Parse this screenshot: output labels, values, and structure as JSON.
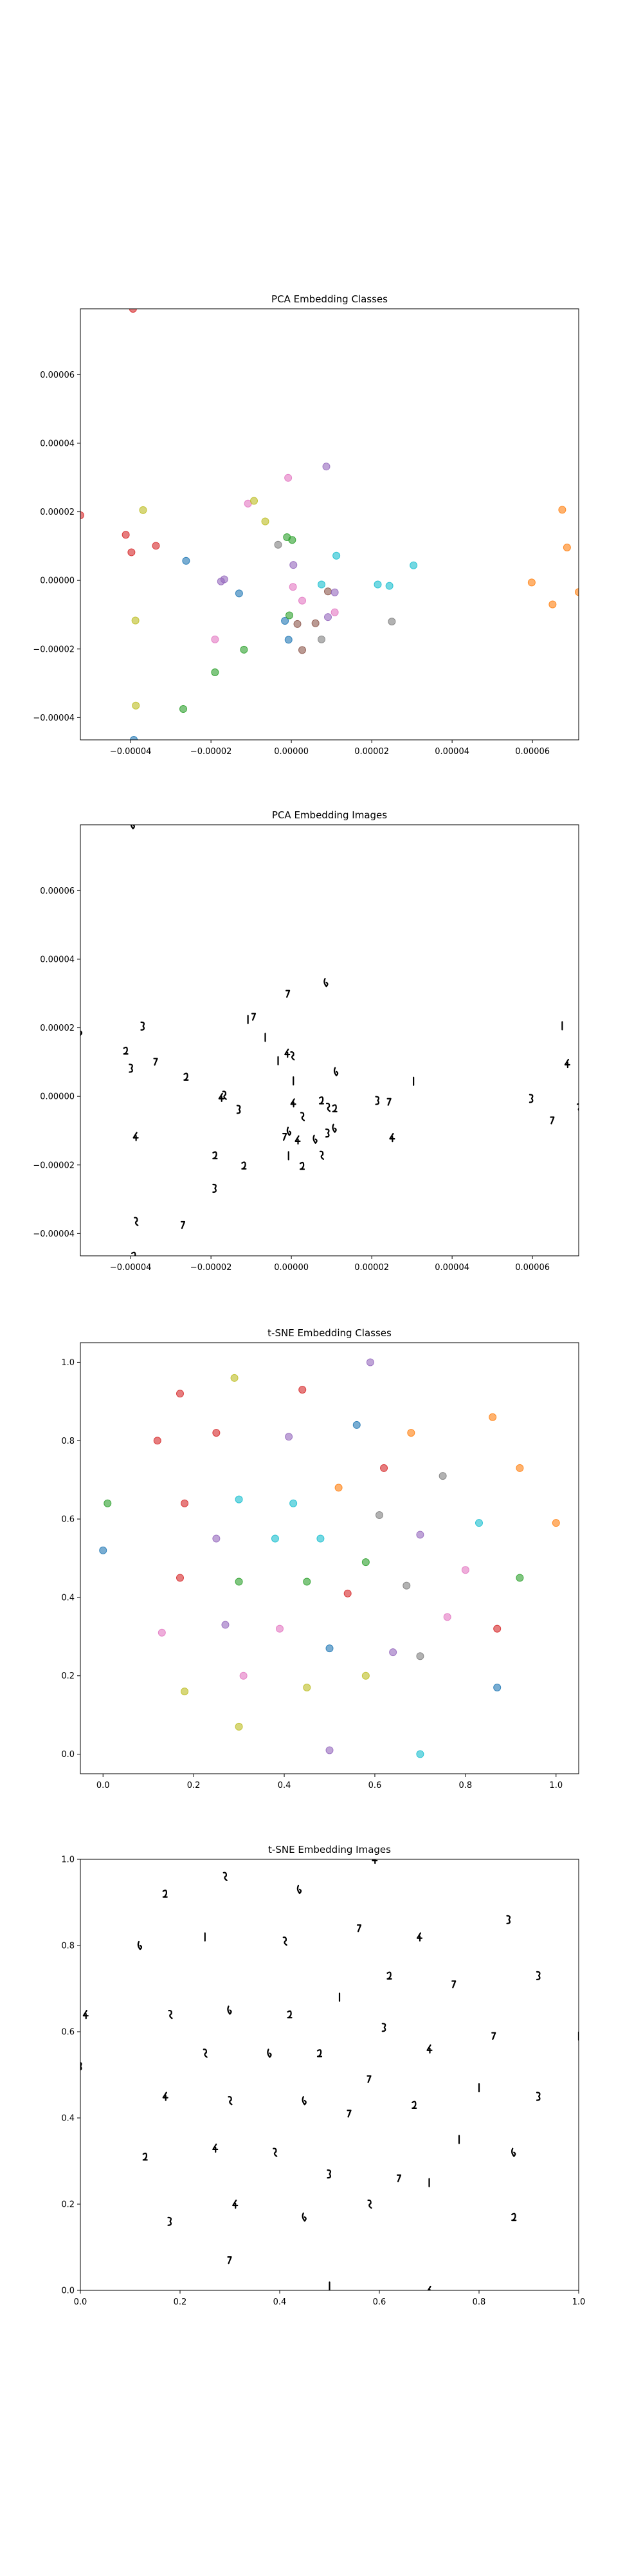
{
  "chart_data": [
    {
      "type": "scatter",
      "title": "PCA Embedding Classes",
      "xlabel": "",
      "ylabel": "",
      "xlim": [
        -5.25e-05,
        7.15e-05
      ],
      "ylim": [
        -4.65e-05,
        7.92e-05
      ],
      "xticks": [
        "−0.00004",
        "−0.00002",
        "0.00000",
        "0.00002",
        "0.00004",
        "0.00006"
      ],
      "xtick_values": [
        -4e-05,
        -2e-05,
        0,
        2e-05,
        4e-05,
        6e-05
      ],
      "yticks": [
        "−0.00004",
        "−0.00002",
        "0.000000",
        "0.000020",
        "0.00004",
        "0.00006"
      ],
      "ytick_values": [
        -4e-05,
        -2e-05,
        0,
        2e-05,
        4e-05,
        6e-05
      ],
      "ytick_labels": [
        "−0.00004",
        "−0.00002",
        "0.00000",
        "0.00002",
        "0.00004",
        "0.00006"
      ],
      "grid": false,
      "points": [
        {
          "x": -2.62e-05,
          "y": 5.7e-06,
          "c": "blue"
        },
        {
          "x": -1.3e-05,
          "y": -3.8e-06,
          "c": "blue"
        },
        {
          "x": -1.6e-06,
          "y": -1.18e-05,
          "c": "blue"
        },
        {
          "x": -7e-07,
          "y": -1.73e-05,
          "c": "blue"
        },
        {
          "x": 1.5e-06,
          "y": -1.27e-05,
          "c": "brown"
        },
        {
          "x": 9.1e-06,
          "y": -3.2e-06,
          "c": "brown"
        },
        {
          "x": 1.12e-05,
          "y": 7.2e-06,
          "c": "cyan"
        },
        {
          "x": 7.5e-06,
          "y": -1.2e-06,
          "c": "cyan"
        },
        {
          "x": 2.15e-05,
          "y": -1.2e-06,
          "c": "cyan"
        },
        {
          "x": 2.44e-05,
          "y": -1.6e-06,
          "c": "cyan"
        },
        {
          "x": 3.04e-05,
          "y": 4.4e-06,
          "c": "cyan"
        },
        {
          "x": -1.1e-06,
          "y": 1.26e-05,
          "c": "green"
        },
        {
          "x": 2e-07,
          "y": 1.18e-05,
          "c": "green"
        },
        {
          "x": -5e-07,
          "y": -1.02e-05,
          "c": "green"
        },
        {
          "x": -1.18e-05,
          "y": -2.02e-05,
          "c": "green"
        },
        {
          "x": -1.9e-05,
          "y": -2.68e-05,
          "c": "green"
        },
        {
          "x": -2.69e-05,
          "y": -3.75e-05,
          "c": "green"
        },
        {
          "x": -3.3e-06,
          "y": 1.04e-05,
          "c": "gray"
        },
        {
          "x": 2.5e-05,
          "y": -1.2e-05,
          "c": "gray"
        },
        {
          "x": 7.5e-06,
          "y": -1.72e-05,
          "c": "gray"
        },
        {
          "x": -3.94e-05,
          "y": 7.92e-05,
          "c": "red"
        },
        {
          "x": -4.12e-05,
          "y": 1.33e-05,
          "c": "red"
        },
        {
          "x": -3.98e-05,
          "y": 8.2e-06,
          "c": "red"
        },
        {
          "x": -3.37e-05,
          "y": 1.01e-05,
          "c": "red"
        },
        {
          "x": 5e-07,
          "y": 4.5e-06,
          "c": "purple"
        },
        {
          "x": -1.75e-05,
          "y": -3e-07,
          "c": "purple"
        },
        {
          "x": -1.67e-05,
          "y": 3e-07,
          "c": "purple"
        },
        {
          "x": 8.7e-06,
          "y": 3.32e-05,
          "c": "purple"
        },
        {
          "x": 1.08e-05,
          "y": -3.5e-06,
          "c": "purple"
        },
        {
          "x": 9.1e-06,
          "y": -1.07e-05,
          "c": "purple"
        },
        {
          "x": -8e-07,
          "y": 2.99e-05,
          "c": "pink"
        },
        {
          "x": -1.08e-05,
          "y": 2.24e-05,
          "c": "pink"
        },
        {
          "x": 4e-07,
          "y": -1.9e-06,
          "c": "pink"
        },
        {
          "x": 2.7e-06,
          "y": -5.9e-06,
          "c": "pink"
        },
        {
          "x": 1.08e-05,
          "y": -9.3e-06,
          "c": "pink"
        },
        {
          "x": -1.9e-05,
          "y": -1.72e-05,
          "c": "pink"
        },
        {
          "x": -3.69e-05,
          "y": 2.05e-05,
          "c": "olive"
        },
        {
          "x": -9.3e-06,
          "y": 2.32e-05,
          "c": "olive"
        },
        {
          "x": -6.5e-06,
          "y": 1.72e-05,
          "c": "olive"
        },
        {
          "x": -3.88e-05,
          "y": -1.17e-05,
          "c": "olive"
        },
        {
          "x": -3.87e-05,
          "y": -3.65e-05,
          "c": "olive"
        },
        {
          "x": 6e-06,
          "y": -1.25e-05,
          "c": "brown"
        },
        {
          "x": 2.7e-06,
          "y": -2.03e-05,
          "c": "brown"
        },
        {
          "x": 5.98e-05,
          "y": -6e-07,
          "c": "orange"
        },
        {
          "x": 6.5e-05,
          "y": -7e-06,
          "c": "orange"
        },
        {
          "x": 6.74e-05,
          "y": 2.06e-05,
          "c": "orange"
        },
        {
          "x": 6.86e-05,
          "y": 9.6e-06,
          "c": "orange"
        },
        {
          "x": 7.15e-05,
          "y": -3.4e-06,
          "c": "orange"
        },
        {
          "x": -5.25e-05,
          "y": 1.9e-05,
          "c": "red"
        },
        {
          "x": -3.92e-05,
          "y": -4.65e-05,
          "c": "blue"
        }
      ]
    },
    {
      "type": "scatter",
      "title": "PCA Embedding Images",
      "xlabel": "",
      "ylabel": "",
      "xlim": [
        -5.25e-05,
        7.15e-05
      ],
      "ylim": [
        -4.65e-05,
        7.92e-05
      ],
      "xticks": [
        "−0.00004",
        "−0.00002",
        "0.00000",
        "0.00002",
        "0.00004",
        "0.00006"
      ],
      "xtick_values": [
        -4e-05,
        -2e-05,
        0,
        2e-05,
        4e-05,
        6e-05
      ],
      "ytick_labels": [
        "−0.00004",
        "−0.00002",
        "0.00000",
        "0.00002",
        "0.00004",
        "0.00006"
      ],
      "ytick_values": [
        -4e-05,
        -2e-05,
        0,
        2e-05,
        4e-05,
        6e-05
      ],
      "grid": false,
      "marker": "digit-image",
      "same_points_as": 0
    },
    {
      "type": "scatter",
      "title": "t-SNE Embedding Classes",
      "xlabel": "",
      "ylabel": "",
      "xlim": [
        -0.05,
        1.05
      ],
      "ylim": [
        -0.05,
        1.05
      ],
      "xtick_labels": [
        "0.0",
        "0.2",
        "0.4",
        "0.6",
        "0.8",
        "1.0"
      ],
      "xtick_values": [
        0,
        0.2,
        0.4,
        0.6,
        0.8,
        1.0
      ],
      "ytick_labels": [
        "0.0",
        "0.2",
        "0.4",
        "0.6",
        "0.8",
        "1.0"
      ],
      "ytick_values": [
        0,
        0.2,
        0.4,
        0.6,
        0.8,
        1.0
      ],
      "grid": false,
      "points": [
        {
          "x": 0.59,
          "y": 1.0,
          "c": "purple"
        },
        {
          "x": 0.29,
          "y": 0.96,
          "c": "olive"
        },
        {
          "x": 0.44,
          "y": 0.93,
          "c": "red"
        },
        {
          "x": 0.17,
          "y": 0.92,
          "c": "red"
        },
        {
          "x": 0.86,
          "y": 0.86,
          "c": "orange"
        },
        {
          "x": 0.56,
          "y": 0.84,
          "c": "blue"
        },
        {
          "x": 0.25,
          "y": 0.82,
          "c": "red"
        },
        {
          "x": 0.68,
          "y": 0.82,
          "c": "orange"
        },
        {
          "x": 0.41,
          "y": 0.81,
          "c": "purple"
        },
        {
          "x": 0.12,
          "y": 0.8,
          "c": "red"
        },
        {
          "x": 0.62,
          "y": 0.73,
          "c": "red"
        },
        {
          "x": 0.92,
          "y": 0.73,
          "c": "orange"
        },
        {
          "x": 0.75,
          "y": 0.71,
          "c": "gray"
        },
        {
          "x": 0.52,
          "y": 0.68,
          "c": "orange"
        },
        {
          "x": 0.01,
          "y": 0.64,
          "c": "green"
        },
        {
          "x": 0.18,
          "y": 0.64,
          "c": "red"
        },
        {
          "x": 0.3,
          "y": 0.65,
          "c": "cyan"
        },
        {
          "x": 0.42,
          "y": 0.64,
          "c": "cyan"
        },
        {
          "x": 0.61,
          "y": 0.61,
          "c": "gray"
        },
        {
          "x": 0.83,
          "y": 0.59,
          "c": "cyan"
        },
        {
          "x": 1.0,
          "y": 0.59,
          "c": "orange"
        },
        {
          "x": 0.7,
          "y": 0.56,
          "c": "purple"
        },
        {
          "x": 0.25,
          "y": 0.55,
          "c": "purple"
        },
        {
          "x": 0.38,
          "y": 0.55,
          "c": "cyan"
        },
        {
          "x": 0.48,
          "y": 0.55,
          "c": "cyan"
        },
        {
          "x": 0.0,
          "y": 0.52,
          "c": "blue"
        },
        {
          "x": 0.58,
          "y": 0.49,
          "c": "green"
        },
        {
          "x": 0.8,
          "y": 0.47,
          "c": "pink"
        },
        {
          "x": 0.17,
          "y": 0.45,
          "c": "red"
        },
        {
          "x": 0.3,
          "y": 0.44,
          "c": "green"
        },
        {
          "x": 0.45,
          "y": 0.44,
          "c": "green"
        },
        {
          "x": 0.67,
          "y": 0.43,
          "c": "gray"
        },
        {
          "x": 0.92,
          "y": 0.45,
          "c": "green"
        },
        {
          "x": 0.54,
          "y": 0.41,
          "c": "red"
        },
        {
          "x": 0.76,
          "y": 0.35,
          "c": "pink"
        },
        {
          "x": 0.27,
          "y": 0.33,
          "c": "purple"
        },
        {
          "x": 0.39,
          "y": 0.32,
          "c": "pink"
        },
        {
          "x": 0.87,
          "y": 0.32,
          "c": "red"
        },
        {
          "x": 0.13,
          "y": 0.31,
          "c": "pink"
        },
        {
          "x": 0.5,
          "y": 0.27,
          "c": "blue"
        },
        {
          "x": 0.64,
          "y": 0.26,
          "c": "purple"
        },
        {
          "x": 0.7,
          "y": 0.25,
          "c": "gray"
        },
        {
          "x": 0.31,
          "y": 0.2,
          "c": "pink"
        },
        {
          "x": 0.58,
          "y": 0.2,
          "c": "olive"
        },
        {
          "x": 0.45,
          "y": 0.17,
          "c": "olive"
        },
        {
          "x": 0.87,
          "y": 0.17,
          "c": "blue"
        },
        {
          "x": 0.18,
          "y": 0.16,
          "c": "olive"
        },
        {
          "x": 0.3,
          "y": 0.07,
          "c": "olive"
        },
        {
          "x": 0.5,
          "y": 0.01,
          "c": "purple"
        },
        {
          "x": 0.7,
          "y": 0.0,
          "c": "cyan"
        }
      ]
    },
    {
      "type": "scatter",
      "title": "t-SNE Embedding Images",
      "xlabel": "",
      "ylabel": "",
      "xlim": [
        0,
        1
      ],
      "ylim": [
        0,
        1
      ],
      "xtick_labels": [
        "0.0",
        "0.2",
        "0.4",
        "0.6",
        "0.8",
        "1.0"
      ],
      "xtick_values": [
        0,
        0.2,
        0.4,
        0.6,
        0.8,
        1.0
      ],
      "ytick_labels": [
        "0.0",
        "0.2",
        "0.4",
        "0.6",
        "0.8",
        "1.0"
      ],
      "ytick_values": [
        0,
        0.2,
        0.4,
        0.6,
        0.8,
        1.0
      ],
      "grid": false,
      "marker": "digit-image",
      "same_points_as": 2
    }
  ],
  "palette": {
    "blue": "#1f77b4",
    "orange": "#ff7f0e",
    "green": "#2ca02c",
    "red": "#d62728",
    "purple": "#9467bd",
    "brown": "#8c564b",
    "pink": "#e377c2",
    "gray": "#7f7f7f",
    "olive": "#bcbd22",
    "cyan": "#17becf"
  }
}
